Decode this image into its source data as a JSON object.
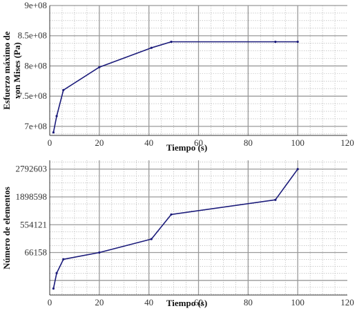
{
  "chart_data": [
    {
      "type": "line",
      "title": "",
      "xlabel": "Tiempo (s)",
      "ylabel_lines": [
        "Esfuerzo máximo de",
        "von Mises (Pa)"
      ],
      "xlim": [
        0,
        120
      ],
      "ylim": [
        685000000.0,
        900000000.0
      ],
      "x_ticks": [
        0,
        20,
        40,
        60,
        80,
        100,
        120
      ],
      "x_tick_labels": [
        "0",
        "20",
        "40",
        "60",
        "80",
        "100",
        "120"
      ],
      "y_ticks": [
        700000000.0,
        750000000.0,
        800000000.0,
        850000000.0,
        900000000.0
      ],
      "y_tick_labels": [
        "7e+08",
        "7.5e+08",
        "8e+08",
        "8.5e+08",
        "9e+08"
      ],
      "grid": true,
      "series": [
        {
          "color": "#1a1a7a",
          "x": [
            1.5,
            2.8,
            5.5,
            20,
            41,
            49,
            91,
            100
          ],
          "y": [
            690000000.0,
            717000000.0,
            760000000.0,
            798000000.0,
            830000000.0,
            840000000.0,
            840000000.0,
            840000000.0
          ]
        }
      ]
    },
    {
      "type": "line",
      "title": "",
      "xlabel": "Tiempo (s)",
      "ylabel_lines": [
        "Número de elementos"
      ],
      "xlim": [
        0,
        120
      ],
      "ylim": [
        -1400000,
        3200000
      ],
      "x_ticks": [
        0,
        20,
        40,
        60,
        80,
        100,
        120
      ],
      "x_tick_labels": [
        "0",
        "20",
        "40",
        "60",
        "80",
        "100",
        "120"
      ],
      "y_ticks": [
        -900000,
        50000,
        1000000,
        1950000,
        2900000
      ],
      "y_tick_labels": [
        "66158",
        "554121",
        "1898598",
        "2792603"
      ],
      "y_label_ticks": [
        50000,
        1000000,
        1950000,
        2900000
      ],
      "grid": true,
      "series": [
        {
          "color": "#1a1a7a",
          "x": [
            1.5,
            2.8,
            5.5,
            20,
            41,
            49,
            91,
            100
          ],
          "y": [
            -1180000,
            -650000,
            -180000,
            50000,
            510000,
            1350000,
            1850000,
            2900000
          ]
        }
      ]
    }
  ]
}
